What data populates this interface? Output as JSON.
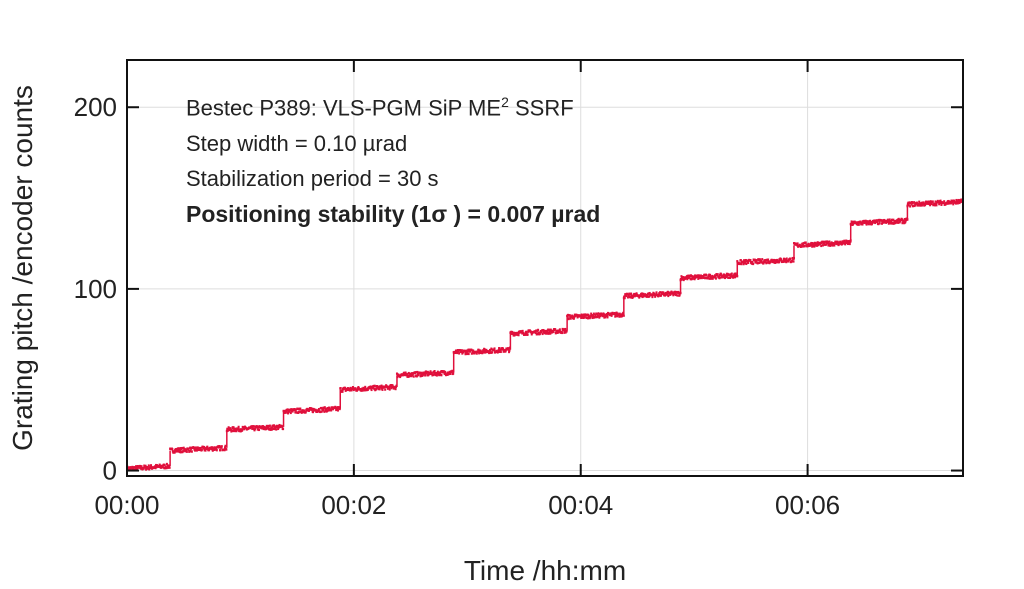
{
  "chart_data": {
    "type": "scatter",
    "title": "",
    "xlabel": "Time /hh:mm",
    "ylabel": "Grating pitch /encoder counts",
    "x_unit": "minutes",
    "xlim": [
      0,
      7.37
    ],
    "ylim": [
      -3,
      226
    ],
    "xticks": [
      0,
      2,
      4,
      6
    ],
    "xtick_labels": [
      "00:00",
      "00:02",
      "00:04",
      "00:06"
    ],
    "yticks": [
      0,
      100,
      200
    ],
    "ytick_labels": [
      "0",
      "100",
      "200"
    ],
    "grid": true,
    "series": [
      {
        "name": "Grating pitch",
        "color": "#e0103c",
        "step_starts": [
          0,
          0.38,
          0.88,
          1.38,
          1.88,
          2.38,
          2.88,
          3.38,
          3.88,
          4.38,
          4.88,
          5.38,
          5.88,
          6.38,
          6.88
        ],
        "levels": [
          1,
          11,
          22.5,
          32.5,
          44.5,
          52.5,
          65,
          75.5,
          84.5,
          96,
          106,
          114.5,
          124,
          136,
          146.5
        ],
        "end": 7.37,
        "noise": 1.2
      }
    ],
    "annotations": {
      "line1_pre": "Bestec P389: VLS-PGM SiP ME",
      "line1_sup": "2",
      "line1_post": " SSRF",
      "line2": "Step width = 0.10 µrad",
      "line3": "Stabilization period = 30 s",
      "line4": "Positioning stability (1σ ) = 0.007 µrad"
    }
  }
}
